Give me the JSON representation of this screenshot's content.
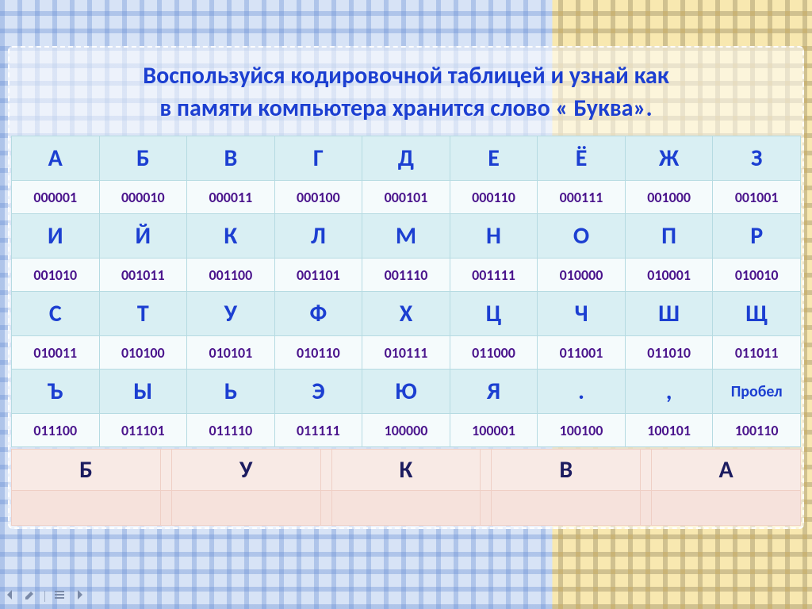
{
  "title": "Воспользуйся кодировочной таблицей  и узнай как\nв памяти компьютера хранится слово « Буква».",
  "encoding": {
    "columns": 9,
    "groups": [
      {
        "letters": [
          "А",
          "Б",
          "В",
          "Г",
          "Д",
          "Е",
          "Ё",
          "Ж",
          "З"
        ],
        "codes": [
          "000001",
          "000010",
          "000011",
          "000100",
          "000101",
          "000110",
          "000111",
          "001000",
          "001001"
        ]
      },
      {
        "letters": [
          "И",
          "Й",
          "К",
          "Л",
          "М",
          "Н",
          "О",
          "П",
          "Р"
        ],
        "codes": [
          "001010",
          "001011",
          "001100",
          "001101",
          "001110",
          "001111",
          "010000",
          "010001",
          "010010"
        ]
      },
      {
        "letters": [
          "С",
          "Т",
          "У",
          "Ф",
          "Х",
          "Ц",
          "Ч",
          "Ш",
          "Щ"
        ],
        "codes": [
          "010011",
          "010100",
          "010101",
          "010110",
          "010111",
          "011000",
          "011001",
          "011010",
          "011011"
        ]
      },
      {
        "letters": [
          "Ъ",
          "Ы",
          "Ь",
          "Э",
          "Ю",
          "Я",
          ".",
          ",",
          "Пробел"
        ],
        "small_index": 8,
        "codes": [
          "011100",
          "011101",
          "011110",
          "011111",
          "100000",
          "100001",
          "100100",
          "100101",
          "100110"
        ]
      }
    ]
  },
  "answer_row": {
    "columns": 5,
    "letters": [
      "Б",
      "У",
      "К",
      "В",
      "А"
    ]
  },
  "colors": {
    "title_text": "#1c3fd1",
    "letter_text": "#1c3fd1",
    "code_text": "#4a148c",
    "letter_bg": "#d9eff3",
    "code_bg": "#f5fbfc",
    "table_border": "#b6dbe2",
    "answer_bg": "#f8eae5",
    "answer_border": "#efcfc5",
    "plaid_blue": "#d7e3f6",
    "plaid_yellow": "#f8e8b0"
  },
  "typography": {
    "title_fontsize": 30,
    "letter_fontsize": 30,
    "code_fontsize": 18,
    "answer_letter_fontsize": 30,
    "font_family": "Segoe UI / Calibri"
  }
}
